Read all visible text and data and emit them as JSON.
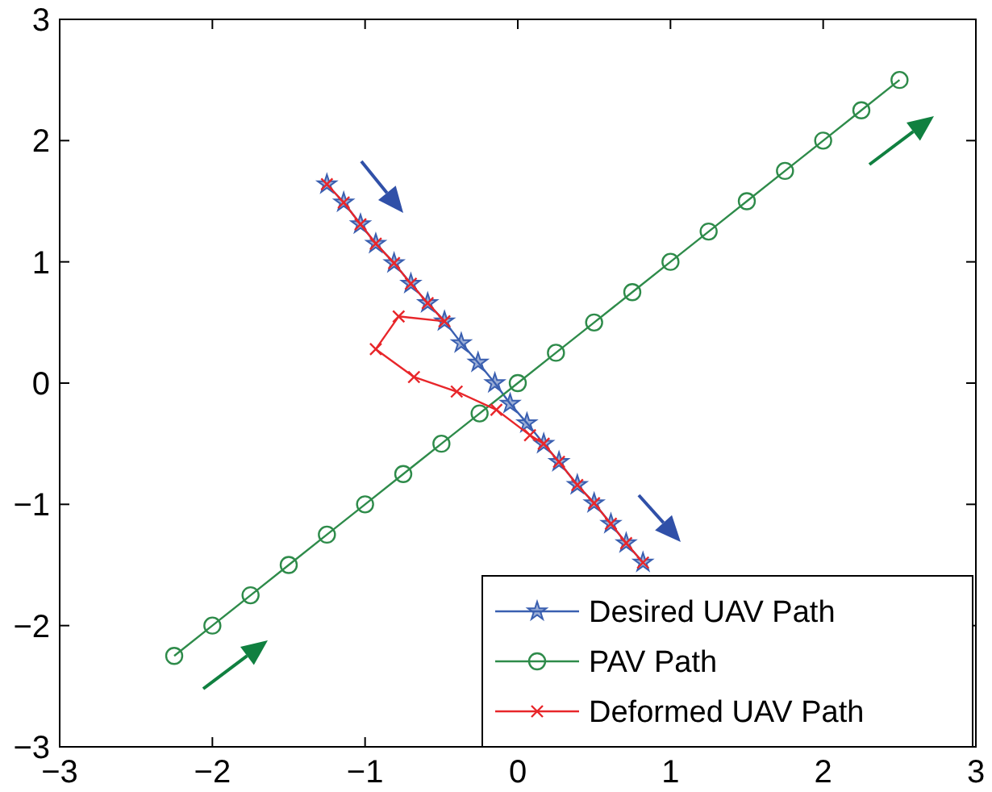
{
  "chart_data": {
    "type": "line",
    "xlim": [
      -3,
      3
    ],
    "ylim": [
      -3,
      3
    ],
    "xticks": [
      {
        "value": -3,
        "label": "−3"
      },
      {
        "value": -2,
        "label": "−2"
      },
      {
        "value": -1,
        "label": "−1"
      },
      0,
      1,
      2,
      3
    ],
    "yticks": [
      {
        "value": -3,
        "label": "−3"
      },
      {
        "value": -2,
        "label": "−2"
      },
      {
        "value": -1,
        "label": "−1"
      },
      0,
      1,
      2,
      3
    ],
    "grid": false,
    "legend": "bottom right",
    "series": [
      {
        "name": "Desired UAV Path",
        "color": "#3a5fb0",
        "marker": "star",
        "x": [
          -1.25,
          -1.14,
          -1.03,
          -0.93,
          -0.81,
          -0.7,
          -0.59,
          -0.48,
          -0.37,
          -0.26,
          -0.15,
          -0.05,
          0.06,
          0.17,
          0.27,
          0.39,
          0.5,
          0.61,
          0.71,
          0.82
        ],
        "values": [
          1.64,
          1.49,
          1.31,
          1.15,
          0.99,
          0.82,
          0.66,
          0.51,
          0.33,
          0.17,
          0.0,
          -0.17,
          -0.33,
          -0.5,
          -0.65,
          -0.84,
          -0.99,
          -1.16,
          -1.32,
          -1.48
        ]
      },
      {
        "name": "PAV Path",
        "color": "#2e8b4a",
        "marker": "circle",
        "x": [
          -2.25,
          -2,
          -1.75,
          -1.5,
          -1.25,
          -1,
          -0.75,
          -0.5,
          -0.25,
          0,
          0.25,
          0.5,
          0.75,
          1,
          1.25,
          1.5,
          1.75,
          2,
          2.25,
          2.5
        ],
        "values": [
          -2.25,
          -2,
          -1.75,
          -1.5,
          -1.25,
          -1,
          -0.75,
          -0.5,
          -0.25,
          0,
          0.25,
          0.5,
          0.75,
          1,
          1.25,
          1.5,
          1.75,
          2,
          2.25,
          2.5
        ]
      },
      {
        "name": "Deformed UAV Path",
        "color": "#e8262a",
        "marker": "cross",
        "x": [
          -1.25,
          -1.14,
          -1.03,
          -0.93,
          -0.81,
          -0.7,
          -0.59,
          -0.48,
          -0.78,
          -0.93,
          -0.68,
          -0.4,
          -0.14,
          0.08,
          0.17,
          0.27,
          0.39,
          0.5,
          0.61,
          0.71,
          0.82
        ],
        "values": [
          1.64,
          1.49,
          1.31,
          1.15,
          0.99,
          0.82,
          0.66,
          0.51,
          0.55,
          0.28,
          0.05,
          -0.07,
          -0.22,
          -0.43,
          -0.5,
          -0.65,
          -0.84,
          -0.99,
          -1.16,
          -1.32,
          -1.48
        ]
      }
    ]
  }
}
